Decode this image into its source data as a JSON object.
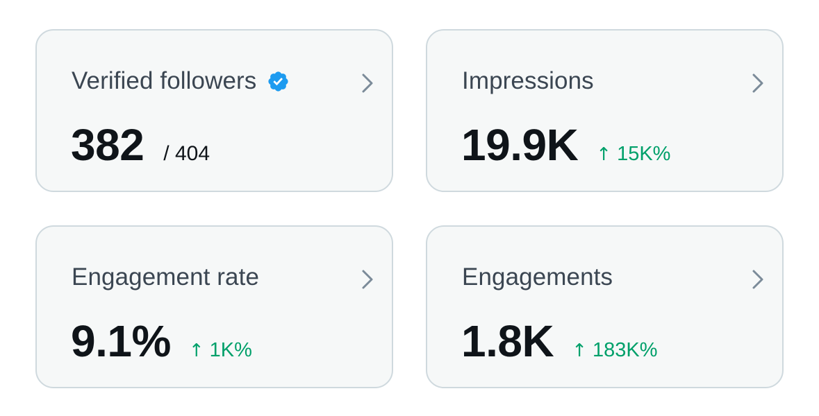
{
  "cards": [
    {
      "label": "Verified followers",
      "value": "382",
      "total": "/ 404",
      "verified": true
    },
    {
      "label": "Impressions",
      "value": "19.9K",
      "delta": "15K%",
      "delta_arrow": "↑"
    },
    {
      "label": "Engagement rate",
      "value": "9.1%",
      "delta": "1K%",
      "delta_arrow": "↑"
    },
    {
      "label": "Engagements",
      "value": "1.8K",
      "delta": "183K%",
      "delta_arrow": "↑"
    }
  ],
  "colors": {
    "card_bg": "#f6f8f8",
    "card_border": "#cfd9de",
    "label": "#3b4652",
    "value": "#0f1419",
    "positive": "#00a06a",
    "verified": "#1d9bf0",
    "chevron": "#7b8b99"
  },
  "icons": {
    "verified": "verified-badge-icon",
    "chevron": "chevron-right-icon"
  }
}
